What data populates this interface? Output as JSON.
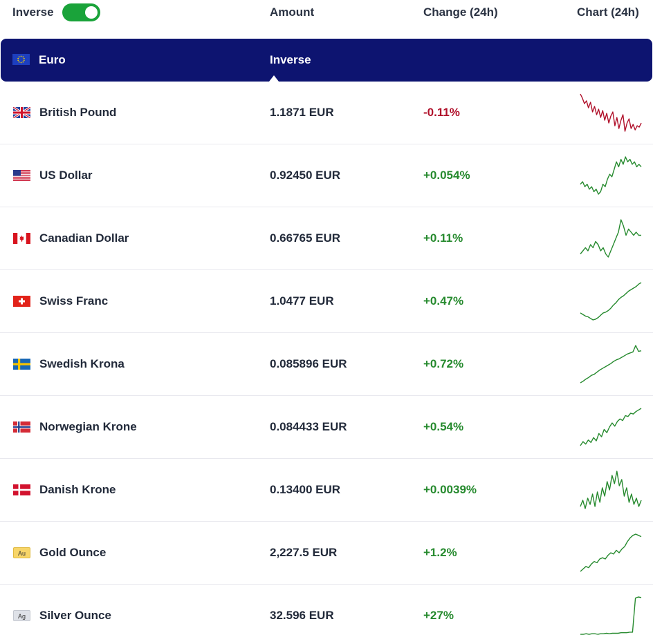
{
  "header": {
    "inverse_label": "Inverse",
    "inverse_on": true,
    "col_amount": "Amount",
    "col_change": "Change (24h)",
    "col_chart": "Chart (24h)"
  },
  "base": {
    "currency": "Euro",
    "flag_icon": "eu-flag-icon",
    "inverse_button": "Inverse"
  },
  "colors": {
    "base_row_bg": "#0d1470",
    "toggle_on": "#1aa33a",
    "positive": "#268a2e",
    "negative": "#b0102a"
  },
  "rows": [
    {
      "name": "British Pound",
      "amount": "1.1871 EUR",
      "change": "-0.11%",
      "trend": "down",
      "icon": "uk-flag-icon",
      "chart": [
        1.1885,
        1.1882,
        1.1878,
        1.188,
        1.1875,
        1.1879,
        1.1872,
        1.1876,
        1.187,
        1.1874,
        1.1868,
        1.1873,
        1.1866,
        1.1871,
        1.1864,
        1.1869,
        1.1872,
        1.1862,
        1.1868,
        1.186,
        1.1866,
        1.187,
        1.1858,
        1.1864,
        1.1867,
        1.186,
        1.1863,
        1.1859,
        1.1862,
        1.1861,
        1.1864
      ]
    },
    {
      "name": "US Dollar",
      "amount": "0.92450 EUR",
      "change": "+0.054%",
      "trend": "up",
      "icon": "us-flag-icon",
      "chart": [
        0.924,
        0.9241,
        0.9239,
        0.924,
        0.9238,
        0.9239,
        0.9237,
        0.9238,
        0.9236,
        0.9237,
        0.924,
        0.9239,
        0.9242,
        0.9244,
        0.9243,
        0.9246,
        0.9249,
        0.9247,
        0.925,
        0.9248,
        0.9251,
        0.9249,
        0.925,
        0.9248,
        0.9249,
        0.9247,
        0.9248,
        0.9247
      ]
    },
    {
      "name": "Canadian Dollar",
      "amount": "0.66765 EUR",
      "change": "+0.11%",
      "trend": "up",
      "icon": "ca-flag-icon",
      "chart": [
        0.6669,
        0.667,
        0.6671,
        0.667,
        0.6672,
        0.6671,
        0.6673,
        0.6672,
        0.667,
        0.6671,
        0.6669,
        0.6668,
        0.667,
        0.6672,
        0.6674,
        0.6676,
        0.668,
        0.6678,
        0.6675,
        0.6677,
        0.6676,
        0.6675,
        0.6676,
        0.6675,
        0.6675
      ]
    },
    {
      "name": "Swiss Franc",
      "amount": "1.0477 EUR",
      "change": "+0.47%",
      "trend": "up",
      "icon": "ch-flag-icon",
      "chart": [
        1.044,
        1.0438,
        1.0436,
        1.0435,
        1.0433,
        1.0431,
        1.0432,
        1.0434,
        1.0437,
        1.044,
        1.0441,
        1.0443,
        1.0446,
        1.045,
        1.0453,
        1.0457,
        1.046,
        1.0462,
        1.0465,
        1.0468,
        1.047,
        1.0472,
        1.0474,
        1.0477,
        1.0479
      ]
    },
    {
      "name": "Swedish Krona",
      "amount": "0.085896 EUR",
      "change": "+0.72%",
      "trend": "up",
      "icon": "se-flag-icon",
      "chart": [
        0.0853,
        0.08533,
        0.08537,
        0.0854,
        0.08544,
        0.08546,
        0.0855,
        0.08554,
        0.08557,
        0.0856,
        0.08563,
        0.08566,
        0.0857,
        0.08573,
        0.08575,
        0.08578,
        0.08581,
        0.08584,
        0.08586,
        0.08588,
        0.086,
        0.08589,
        0.0859
      ]
    },
    {
      "name": "Norwegian Krone",
      "amount": "0.084433 EUR",
      "change": "+0.54%",
      "trend": "up",
      "icon": "no-flag-icon",
      "chart": [
        0.084,
        0.08405,
        0.08402,
        0.08407,
        0.08404,
        0.0841,
        0.08406,
        0.08415,
        0.08411,
        0.0842,
        0.08416,
        0.08423,
        0.08428,
        0.08424,
        0.0843,
        0.08433,
        0.08431,
        0.08437,
        0.08436,
        0.0844,
        0.08439,
        0.08442,
        0.08444,
        0.08446
      ]
    },
    {
      "name": "Danish Krone",
      "amount": "0.13400 EUR",
      "change": "+0.0039%",
      "trend": "up",
      "icon": "dk-flag-icon",
      "chart": [
        0.13396,
        0.13399,
        0.13395,
        0.134,
        0.13397,
        0.13402,
        0.13396,
        0.13403,
        0.13398,
        0.13405,
        0.13401,
        0.13408,
        0.13404,
        0.13411,
        0.13407,
        0.13413,
        0.13406,
        0.13409,
        0.13401,
        0.13405,
        0.13398,
        0.13402,
        0.13397,
        0.134,
        0.13396,
        0.13399
      ]
    },
    {
      "name": "Gold Ounce",
      "amount": "2,227.5 EUR",
      "change": "+1.2%",
      "trend": "up",
      "icon": "gold-ounce-icon",
      "badge": "Au",
      "chart": [
        2200,
        2202,
        2204,
        2203,
        2206,
        2208,
        2207,
        2210,
        2211,
        2210,
        2213,
        2215,
        2214,
        2217,
        2215,
        2218,
        2220,
        2224,
        2227,
        2229,
        2230,
        2229,
        2228
      ]
    },
    {
      "name": "Silver Ounce",
      "amount": "32.596 EUR",
      "change": "+27%",
      "trend": "up",
      "icon": "silver-ounce-icon",
      "badge": "Ag",
      "chart": [
        25.6,
        25.6,
        25.7,
        25.6,
        25.7,
        25.7,
        25.6,
        25.7,
        25.7,
        25.8,
        25.7,
        25.8,
        25.8,
        25.8,
        25.9,
        25.9,
        25.9,
        26.0,
        26.0,
        32.4,
        32.6,
        32.5
      ]
    }
  ]
}
